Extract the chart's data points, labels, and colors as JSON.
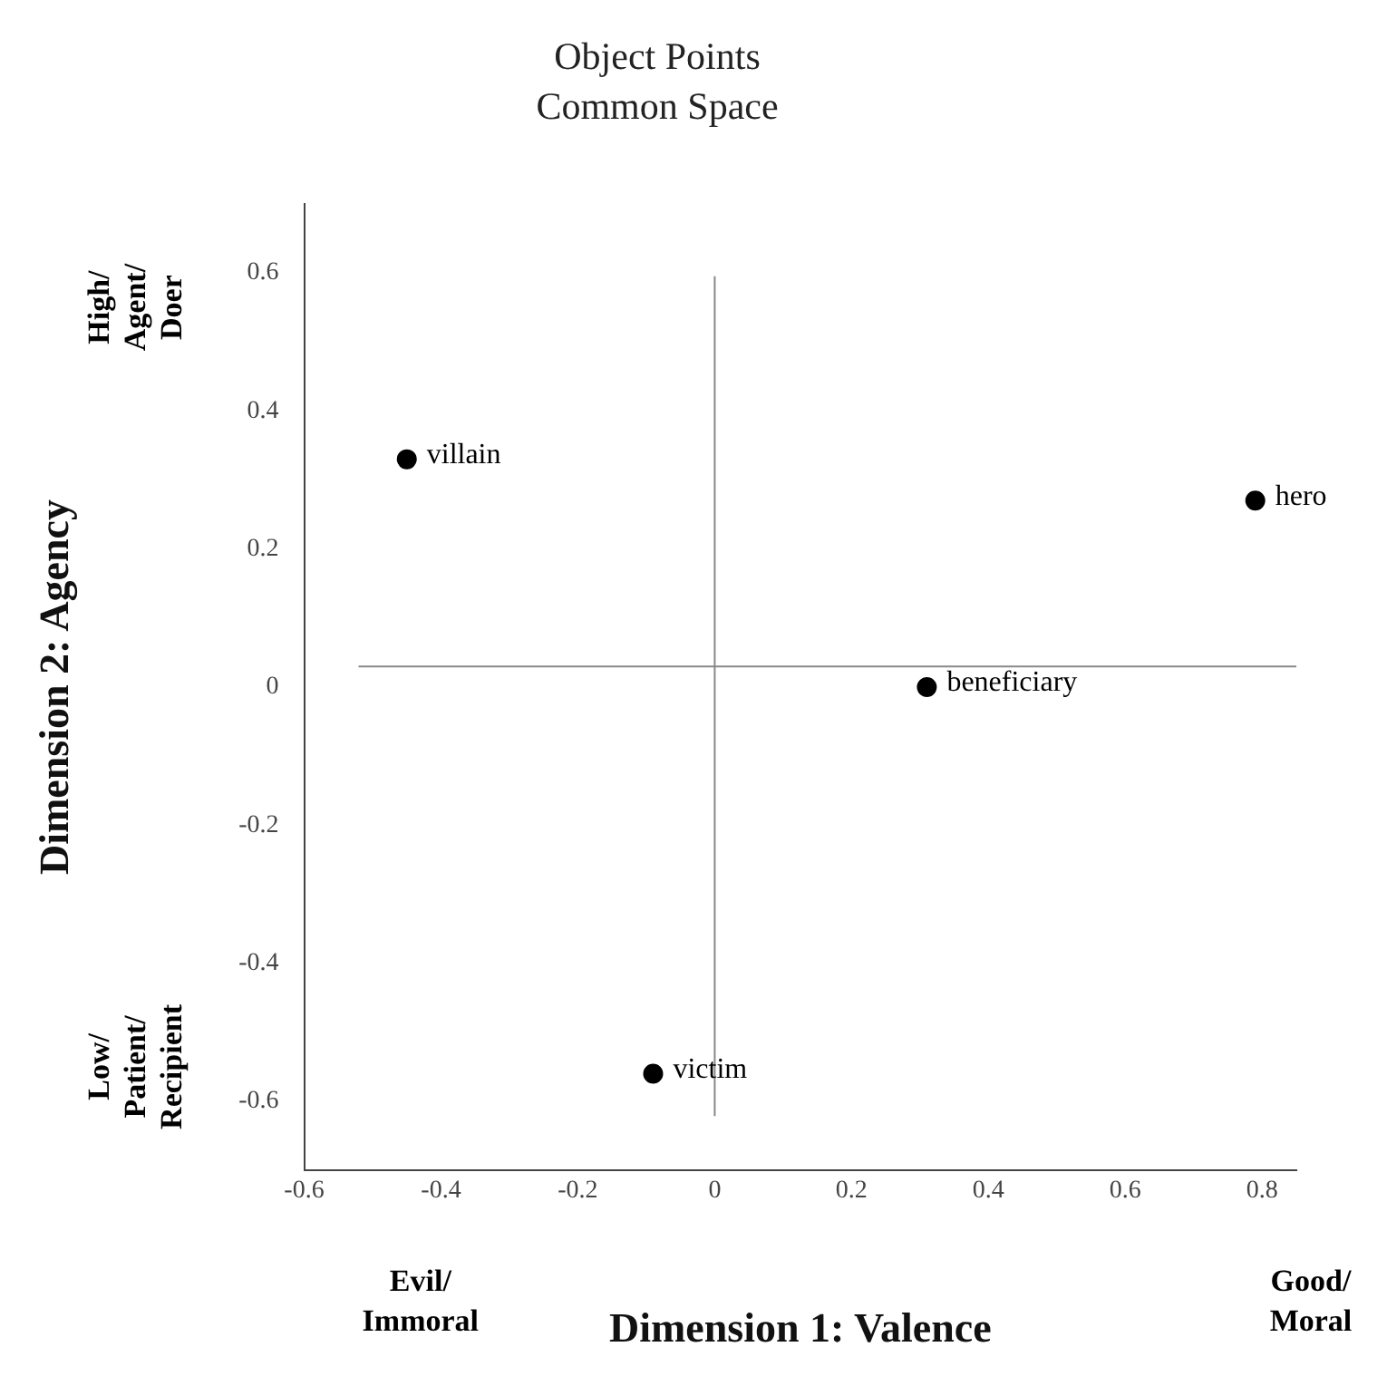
{
  "chart_data": {
    "type": "scatter",
    "title": "Object Points",
    "subtitle": "Common Space",
    "xlabel": "Dimension 1: Valence",
    "ylabel": "Dimension 2: Agency",
    "series": [
      {
        "name": "villain",
        "color": "#000000",
        "x": [
          -0.45
        ],
        "values": [
          0.33
        ]
      },
      {
        "name": "hero",
        "color": "#000000",
        "x": [
          0.79
        ],
        "values": [
          0.27
        ]
      },
      {
        "name": "beneficiary",
        "color": "#000000",
        "x": [
          0.31
        ],
        "values": [
          0.0
        ]
      },
      {
        "name": "victim",
        "color": "#000000",
        "x": [
          -0.09
        ],
        "values": [
          -0.56
        ]
      }
    ],
    "xlim": [
      -0.6,
      0.85
    ],
    "xticks": [
      -0.6,
      -0.4,
      -0.2,
      0,
      0.2,
      0.4,
      0.6,
      0.8
    ],
    "ylim": [
      -0.7,
      0.7
    ],
    "yticks": [
      -0.6,
      -0.4,
      -0.2,
      0,
      0.2,
      0.4,
      0.6
    ],
    "ref_lines": [
      {
        "axis": "x",
        "value": 0,
        "color": "#888888"
      },
      {
        "axis": "y",
        "value": 0.03,
        "color": "#888888"
      }
    ],
    "annotations": [
      "High/\nAgent/\nDoer",
      "Low/\nPatient/\nRecipient",
      "Evil/\nImmoral",
      "Good/\nMoral"
    ],
    "marker": "circle",
    "grid": false,
    "legend": false
  }
}
